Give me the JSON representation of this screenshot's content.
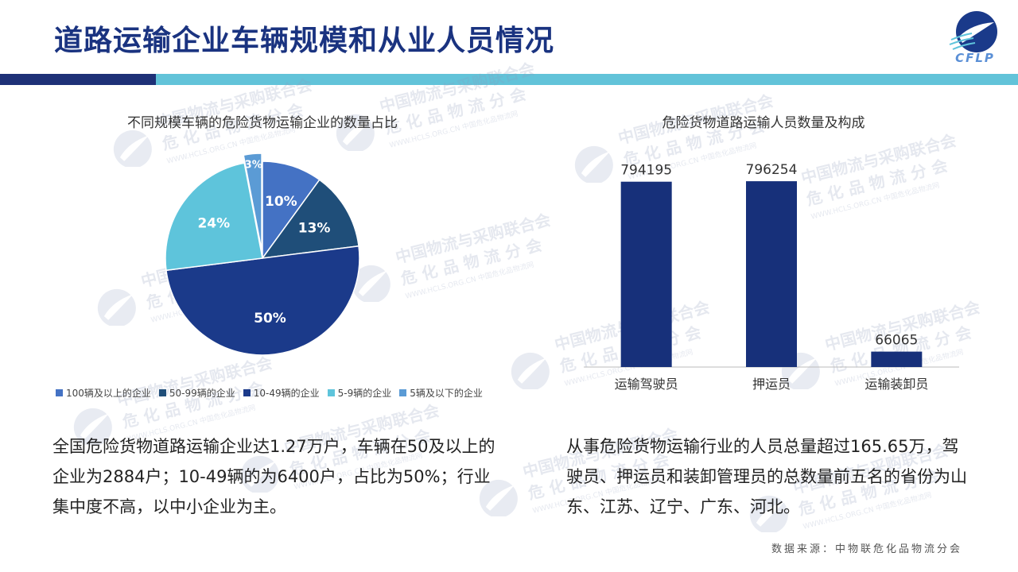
{
  "header": {
    "title": "道路运输企业车辆规模和从业人员情况",
    "logo_text": "CFLP"
  },
  "watermark": {
    "line1": "中国物流与采购联合会",
    "line2": "危 化 品 物 流 分 会",
    "line3": "WWW.HCLS.ORG.CN 中国危化品物流网",
    "logo_text": "CFLP"
  },
  "colors": {
    "title": "#1a3380",
    "band_dark": "#1e3177",
    "band_light": "#62c3d9",
    "bar": "#17307a"
  },
  "chart_data": [
    {
      "type": "pie",
      "title": "不同规模车辆的危险货物运输企业的数量占比",
      "legend_position": "bottom",
      "slices": [
        {
          "name": "100辆及以上的企业",
          "value": 10,
          "label": "10%",
          "color": "#4472c4"
        },
        {
          "name": "50-99辆的企业",
          "value": 13,
          "label": "13%",
          "color": "#1f4e79"
        },
        {
          "name": "10-49辆的企业",
          "value": 50,
          "label": "50%",
          "color": "#1b3a8a"
        },
        {
          "name": "5-9辆的企业",
          "value": 24,
          "label": "24%",
          "color": "#5ec4db"
        },
        {
          "name": "5辆及以下的企业",
          "value": 3,
          "label": "3%",
          "color": "#5b9bd5"
        }
      ]
    },
    {
      "type": "bar",
      "title": "危险货物道路运输人员数量及构成",
      "categories": [
        "运输驾驶员",
        "押运员",
        "运输装卸员"
      ],
      "values": [
        794195,
        796254,
        66065
      ],
      "value_labels": [
        "794195",
        "796254",
        "66065"
      ],
      "ylim": [
        0,
        800000
      ],
      "grid": false
    }
  ],
  "text": {
    "left": "全国危险货物道路运输企业达1.27万户，车辆在50及以上的企业为2884户；10-49辆的为6400户，占比为50%；行业集中度不高，以中小企业为主。",
    "right": "从事危险货物运输行业的人员总量超过165.65万，驾驶员、押运员和装卸管理员的总数量前五名的省份为山东、江苏、辽宁、广东、河北。"
  },
  "footer": {
    "source": "数据来源：中物联危化品物流分会"
  }
}
